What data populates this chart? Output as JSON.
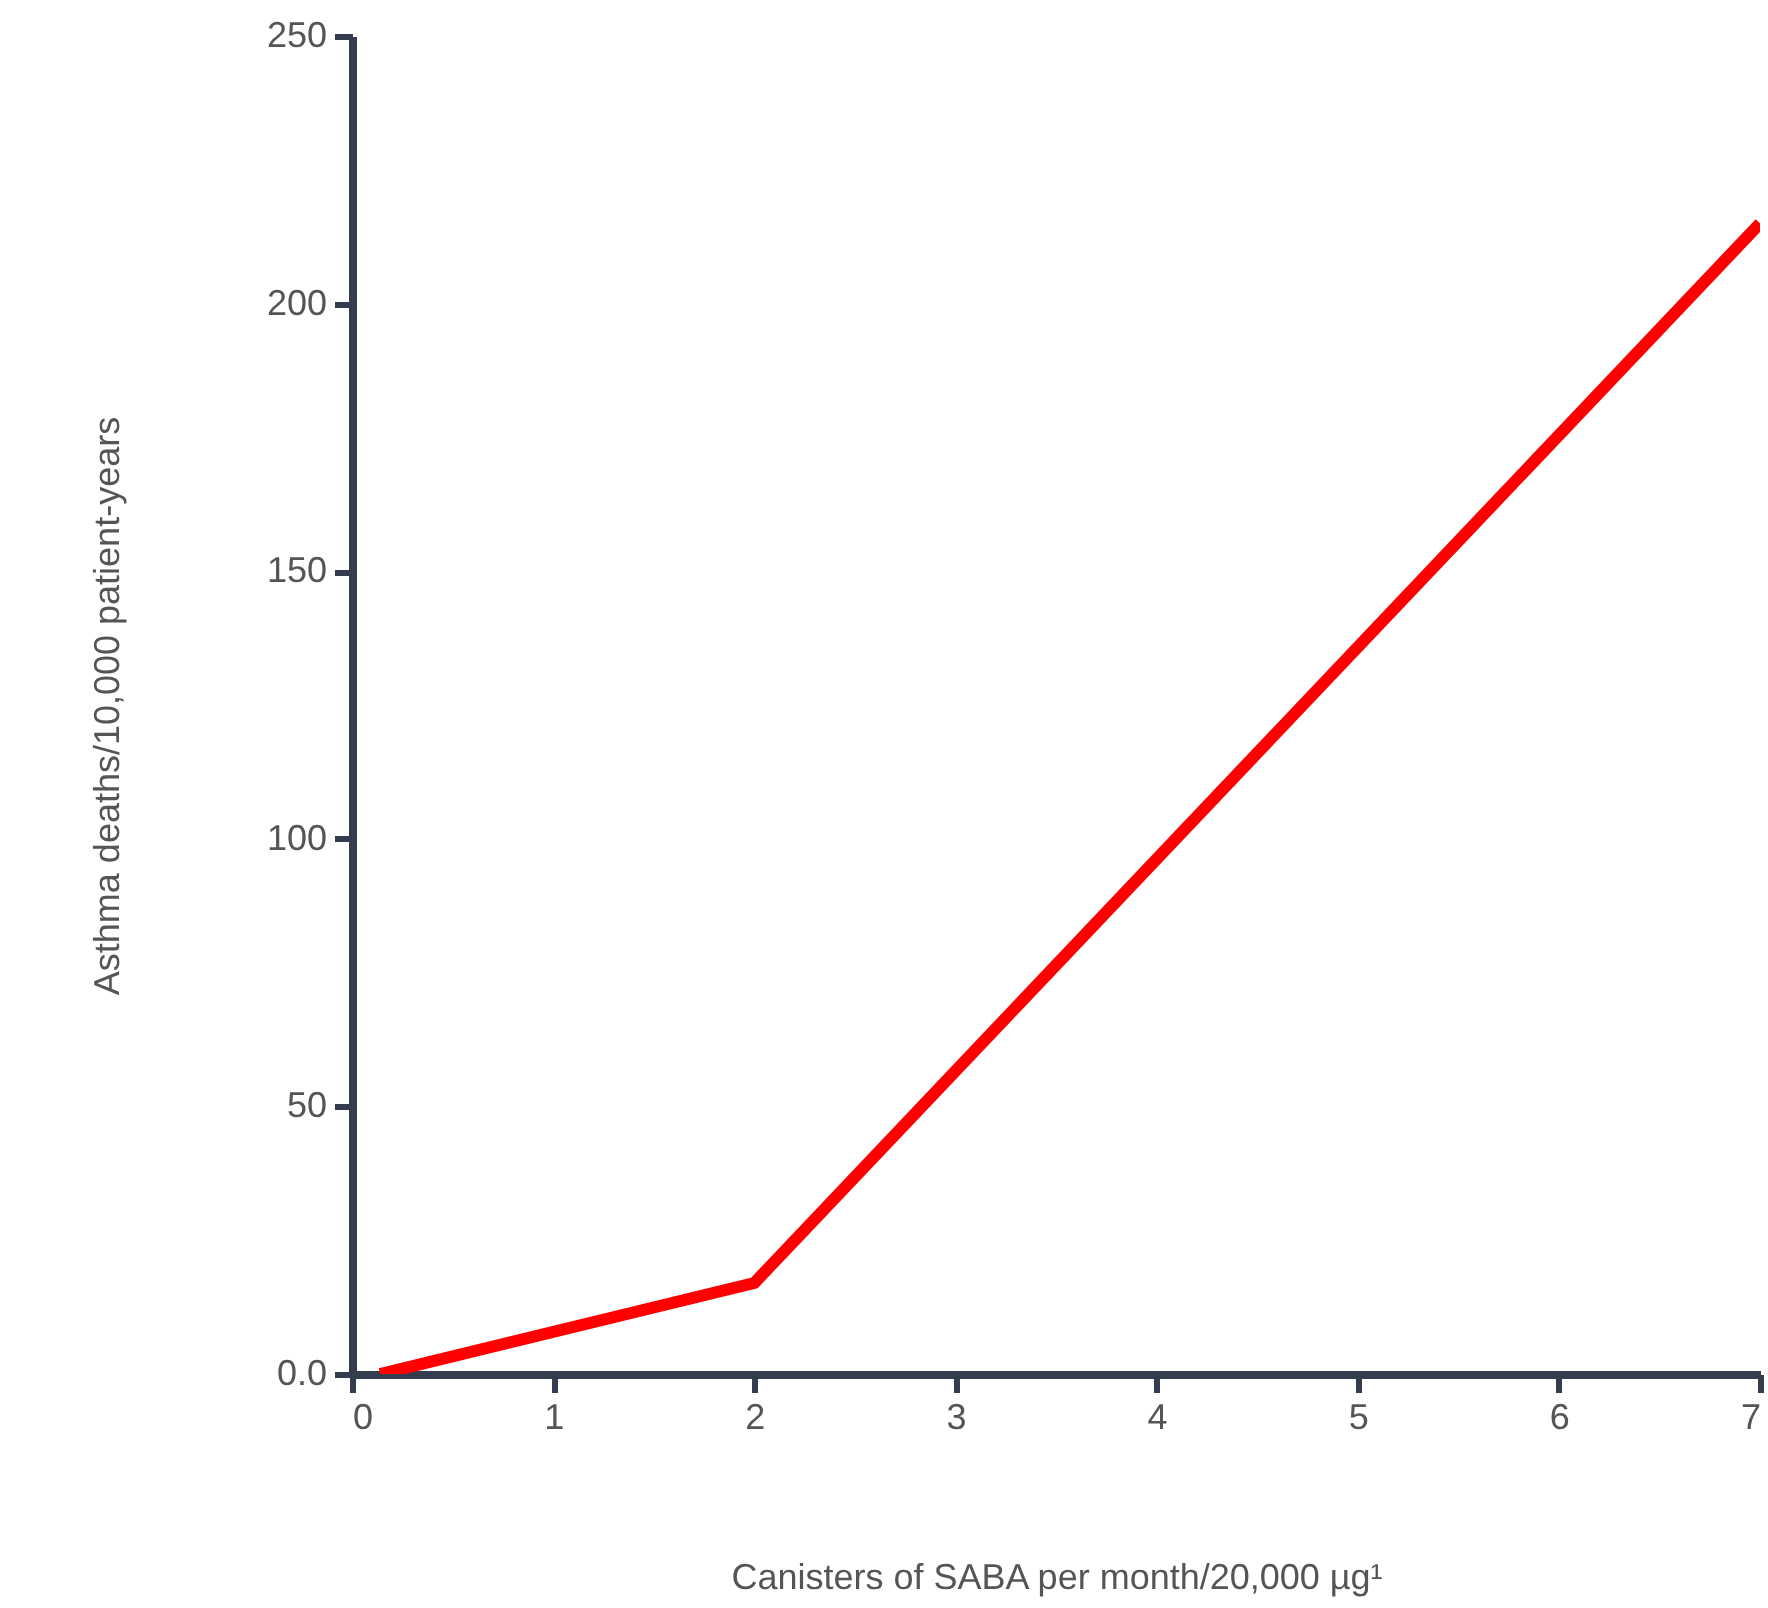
{
  "chart_data": {
    "type": "line",
    "xlabel": "Canisters of SABA per month/20,000 µg¹",
    "ylabel": "Asthma deaths/10,000 patient-years",
    "x": [
      0.14,
      2,
      7
    ],
    "series": [
      {
        "color": "#ff0000",
        "values": [
          0,
          17,
          215
        ]
      }
    ],
    "xlim": [
      0,
      7
    ],
    "xticks": [
      0,
      1,
      2,
      3,
      4,
      5,
      6,
      7
    ],
    "ylim": [
      0,
      250
    ],
    "yticks": [
      {
        "value": 0,
        "label": "0.0"
      },
      50,
      100,
      150,
      200,
      250
    ],
    "grid": false,
    "marker": "none",
    "line_style": "solid"
  }
}
